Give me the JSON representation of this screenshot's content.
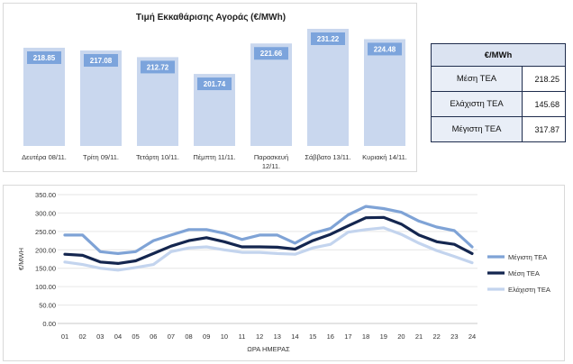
{
  "chart_data": [
    {
      "type": "bar",
      "title": "Τιμή Εκκαθάρισης Αγοράς (€/MWh)",
      "categories": [
        [
          "Δευτέρα 08/11."
        ],
        [
          "Τρίτη 09/11."
        ],
        [
          "Τετάρτη 10/11."
        ],
        [
          "Πέμπτη 11/11."
        ],
        [
          "Παρασκευή",
          "12/11."
        ],
        [
          "Σάββατο 13/11."
        ],
        [
          "Κυριακή 14/11."
        ]
      ],
      "values": [
        218.85,
        217.08,
        212.72,
        201.74,
        221.66,
        231.22,
        224.48
      ],
      "value_labels": [
        "218.85",
        "217.08",
        "212.72",
        "201.74",
        "221.66",
        "231.22",
        "224.48"
      ],
      "bar_color": "#c9d7ee",
      "label_box_color": "#7ca4dc"
    },
    {
      "type": "line",
      "xlabel": "ΩΡΑ ΗΜΕΡΑΣ",
      "ylabel": "€/MWH",
      "x": [
        "01",
        "02",
        "03",
        "04",
        "05",
        "06",
        "07",
        "08",
        "09",
        "10",
        "11",
        "12",
        "13",
        "14",
        "15",
        "16",
        "17",
        "18",
        "19",
        "20",
        "21",
        "22",
        "23",
        "24"
      ],
      "ylim": [
        0,
        350
      ],
      "yticks": [
        "0.00",
        "50.00",
        "100.00",
        "150.00",
        "200.00",
        "250.00",
        "300.00",
        "350.00"
      ],
      "grid": true,
      "legend_position": "right",
      "series": [
        {
          "name": "Μέγιστη ΤΕΑ",
          "color": "#7fa3d6",
          "values": [
            240,
            240,
            195,
            190,
            195,
            225,
            240,
            255,
            255,
            245,
            228,
            240,
            240,
            218,
            245,
            258,
            295,
            318,
            312,
            302,
            278,
            262,
            252,
            208
          ]
        },
        {
          "name": "Μέση ΤΕΑ",
          "color": "#14264f",
          "values": [
            188,
            185,
            167,
            163,
            170,
            190,
            210,
            225,
            233,
            222,
            208,
            208,
            207,
            202,
            225,
            242,
            265,
            287,
            288,
            270,
            240,
            222,
            215,
            190
          ]
        },
        {
          "name": "Ελάχιστη ΤΕΑ",
          "color": "#c3d4ee",
          "values": [
            167,
            160,
            150,
            145,
            152,
            160,
            195,
            205,
            208,
            200,
            193,
            193,
            190,
            188,
            205,
            215,
            248,
            255,
            260,
            242,
            218,
            198,
            182,
            165
          ]
        }
      ]
    }
  ],
  "table": {
    "header": "€/MWh",
    "rows": [
      {
        "label": "Μέση ΤΕΑ",
        "value": "218.25"
      },
      {
        "label": "Ελάχιστη ΤΕΑ",
        "value": "145.68"
      },
      {
        "label": "Μέγιστη ΤΕΑ",
        "value": "317.87"
      }
    ]
  }
}
